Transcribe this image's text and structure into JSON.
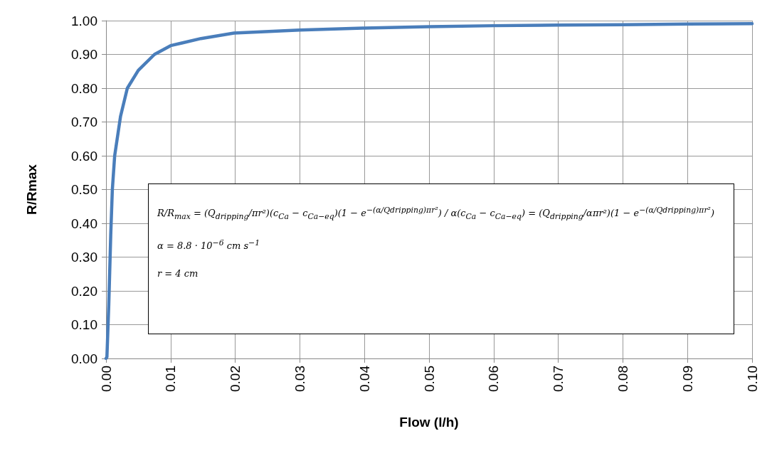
{
  "chart_data": {
    "type": "line",
    "xlabel": "Flow (l/h)",
    "ylabel": "R/Rmax",
    "x": [
      0,
      0.00014,
      0.00043,
      0.00073,
      0.00098,
      0.00134,
      0.00225,
      0.0033,
      0.005,
      0.0075,
      0.01,
      0.0147,
      0.0198,
      0.03,
      0.04,
      0.05,
      0.06,
      0.07,
      0.08,
      0.09,
      0.1
    ],
    "series": [
      {
        "color": "#4a7ebb",
        "values": [
          0,
          0.004,
          0.16,
          0.365,
          0.5,
          0.6,
          0.717,
          0.8,
          0.853,
          0.9,
          0.926,
          0.947,
          0.963,
          0.972,
          0.978,
          0.982,
          0.985,
          0.987,
          0.988,
          0.99,
          0.991
        ]
      }
    ],
    "xlim": [
      0,
      0.1
    ],
    "xticks": [
      {
        "value": 0,
        "label": "0.00"
      },
      {
        "value": 0.01,
        "label": "0.01"
      },
      {
        "value": 0.02,
        "label": "0.02"
      },
      {
        "value": 0.03,
        "label": "0.03"
      },
      {
        "value": 0.04,
        "label": "0.04"
      },
      {
        "value": 0.05,
        "label": "0.05"
      },
      {
        "value": 0.06,
        "label": "0.06"
      },
      {
        "value": 0.07,
        "label": "0.07"
      },
      {
        "value": 0.08,
        "label": "0.08"
      },
      {
        "value": 0.09,
        "label": "0.09"
      },
      {
        "value": 0.1,
        "label": "0.10"
      }
    ],
    "ylim": [
      0,
      1
    ],
    "yticks": [
      {
        "value": 0,
        "label": "0.00"
      },
      {
        "value": 0.1,
        "label": "0.10"
      },
      {
        "value": 0.2,
        "label": "0.20"
      },
      {
        "value": 0.3,
        "label": "0.30"
      },
      {
        "value": 0.4,
        "label": "0.40"
      },
      {
        "value": 0.5,
        "label": "0.50"
      },
      {
        "value": 0.6,
        "label": "0.60"
      },
      {
        "value": 0.7,
        "label": "0.70"
      },
      {
        "value": 0.8,
        "label": "0.80"
      },
      {
        "value": 0.9,
        "label": "0.90"
      },
      {
        "value": 1,
        "label": "1.00"
      }
    ],
    "grid": true,
    "marker": "none",
    "line_style": "solid",
    "annotations": [
      "R/R$_{max}$ = (Q$_{dripping}$/πr²)(c$_{Ca}$ − c$_{Ca−eq}$)(1 − e$^{−(α/Qdripping)πr²}$) / α(c$_{Ca}$ − c$_{Ca−eq}$) = (Q$_{dripping}$/απr²)(1 − e$^{−(α/Qdripping)πr²}$)",
      "α = 8.8 · 10$^{−6}$ cm s$^{−1}$",
      "r = 4 cm"
    ]
  }
}
